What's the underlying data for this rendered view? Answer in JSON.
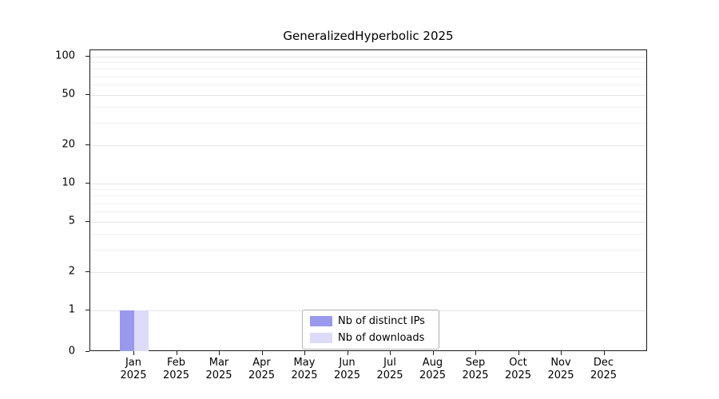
{
  "chart_data": {
    "type": "bar",
    "title": "GeneralizedHyperbolic 2025",
    "year_label": "2025",
    "categories": [
      "Jan",
      "Feb",
      "Mar",
      "Apr",
      "May",
      "Jun",
      "Jul",
      "Aug",
      "Sep",
      "Oct",
      "Nov",
      "Dec"
    ],
    "series": [
      {
        "name": "Nb of distinct IPs",
        "color": "#9999ee",
        "values": [
          1,
          0,
          0,
          0,
          0,
          0,
          0,
          0,
          0,
          0,
          0,
          0
        ]
      },
      {
        "name": "Nb of downloads",
        "color": "#dcdcf8",
        "values": [
          1,
          0,
          0,
          0,
          0,
          0,
          0,
          0,
          0,
          0,
          0,
          0
        ]
      }
    ],
    "y_axis": {
      "scale": "symlog",
      "ticks": [
        100,
        50,
        20,
        10,
        5,
        2,
        1,
        0
      ],
      "minor_gridlines": [
        3,
        4,
        6,
        7,
        8,
        9,
        30,
        40,
        60,
        70,
        80,
        90
      ],
      "range": [
        0,
        100
      ]
    },
    "xlabel": "",
    "ylabel": "",
    "grid": true,
    "legend_position": "lower center"
  }
}
